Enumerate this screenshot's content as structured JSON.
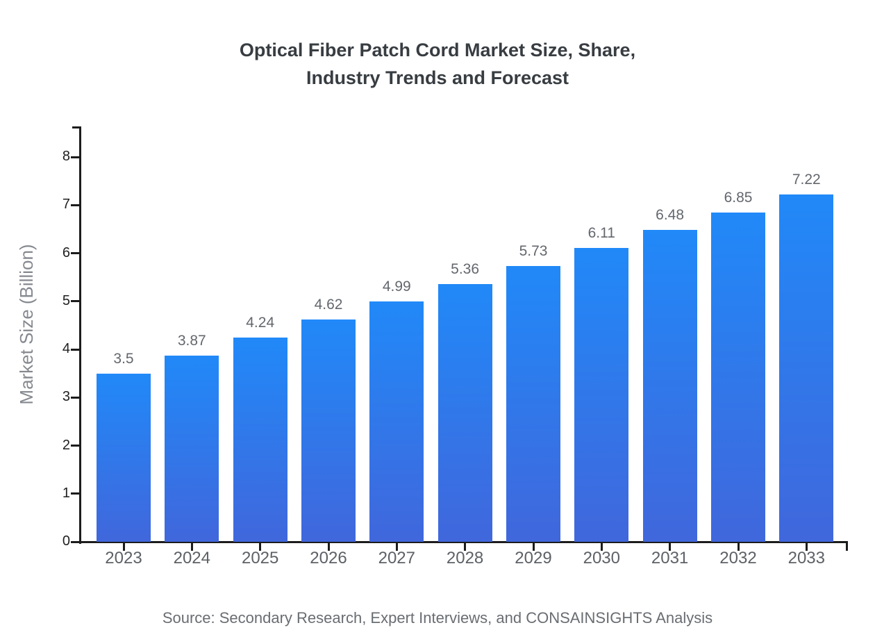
{
  "title": {
    "line1": "Optical Fiber Patch Cord Market Size, Share,",
    "line2": "Industry Trends and Forecast"
  },
  "source_note": "Source: Secondary Research, Expert Interviews, and CONSAINSIGHTS Analysis",
  "chart_data": {
    "type": "bar",
    "title": "Optical Fiber Patch Cord Market Size, Share, Industry Trends and Forecast",
    "categories": [
      "2023",
      "2024",
      "2025",
      "2026",
      "2027",
      "2028",
      "2029",
      "2030",
      "2031",
      "2032",
      "2033"
    ],
    "values": [
      3.5,
      3.87,
      4.24,
      4.62,
      4.99,
      5.36,
      5.73,
      6.11,
      6.48,
      6.85,
      7.22
    ],
    "value_labels": [
      "3.5",
      "3.87",
      "4.24",
      "4.62",
      "4.99",
      "5.36",
      "5.73",
      "6.11",
      "6.48",
      "6.85",
      "7.22"
    ],
    "xlabel": "",
    "ylabel": "Market Size (Billion)",
    "ylim": [
      0,
      8.6
    ],
    "yticks": [
      0,
      1,
      2,
      3,
      4,
      5,
      6,
      7,
      8
    ],
    "grid": false,
    "legend": "none",
    "bar_gradient_top": "#2189F8",
    "bar_gradient_bottom": "#4067DC",
    "axis_color": "#1c1c1c",
    "label_color": "#63676d"
  }
}
